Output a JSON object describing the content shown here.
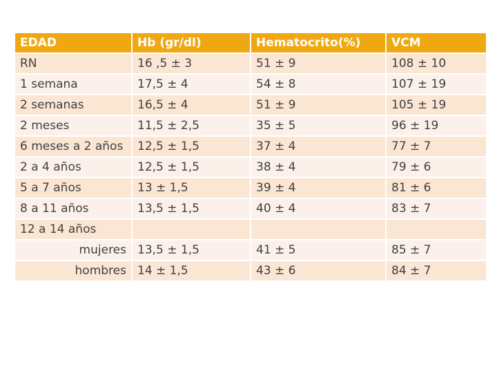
{
  "table": {
    "headers": [
      "EDAD",
      "Hb (gr/dl)",
      "Hematocrito(%)",
      "VCM"
    ],
    "rows": [
      {
        "edad": "RN",
        "hb": "16 ,5 ± 3",
        "hto": "51 ± 9",
        "vcm": "108 ± 10"
      },
      {
        "edad": "1 semana",
        "hb": "17,5 ± 4",
        "hto": "54 ± 8",
        "vcm": "107 ± 19"
      },
      {
        "edad": "2 semanas",
        "hb": "16,5 ± 4",
        "hto": "51 ± 9",
        "vcm": "105 ± 19"
      },
      {
        "edad": "2 meses",
        "hb": "11,5 ± 2,5",
        "hto": "35 ± 5",
        "vcm": "96 ± 19"
      },
      {
        "edad": "6 meses a 2 años",
        "hb": "12,5 ± 1,5",
        "hto": "37 ± 4",
        "vcm": "77 ± 7"
      },
      {
        "edad": "2 a 4 años",
        "hb": "12,5 ± 1,5",
        "hto": "38 ± 4",
        "vcm": "79 ± 6"
      },
      {
        "edad": "5 a 7 años",
        "hb": "13 ± 1,5",
        "hto": "39 ± 4",
        "vcm": "81 ± 6"
      },
      {
        "edad": "8 a 11 años",
        "hb": "13,5 ± 1,5",
        "hto": "40 ± 4",
        "vcm": "83 ± 7"
      },
      {
        "edad": "12 a 14 años",
        "hb": "",
        "hto": "",
        "vcm": ""
      },
      {
        "edad": "mujeres",
        "hb": "13,5 ± 1,5",
        "hto": "41 ± 5",
        "vcm": "85 ± 7"
      },
      {
        "edad": "hombres",
        "hb": "14 ± 1,5",
        "hto": "43 ± 6",
        "vcm": "84 ± 7"
      }
    ]
  },
  "colors": {
    "header": "#efa812",
    "row_dark": "#fbe6d3",
    "row_light": "#fbf1ea",
    "text": "#3f3f3f"
  }
}
